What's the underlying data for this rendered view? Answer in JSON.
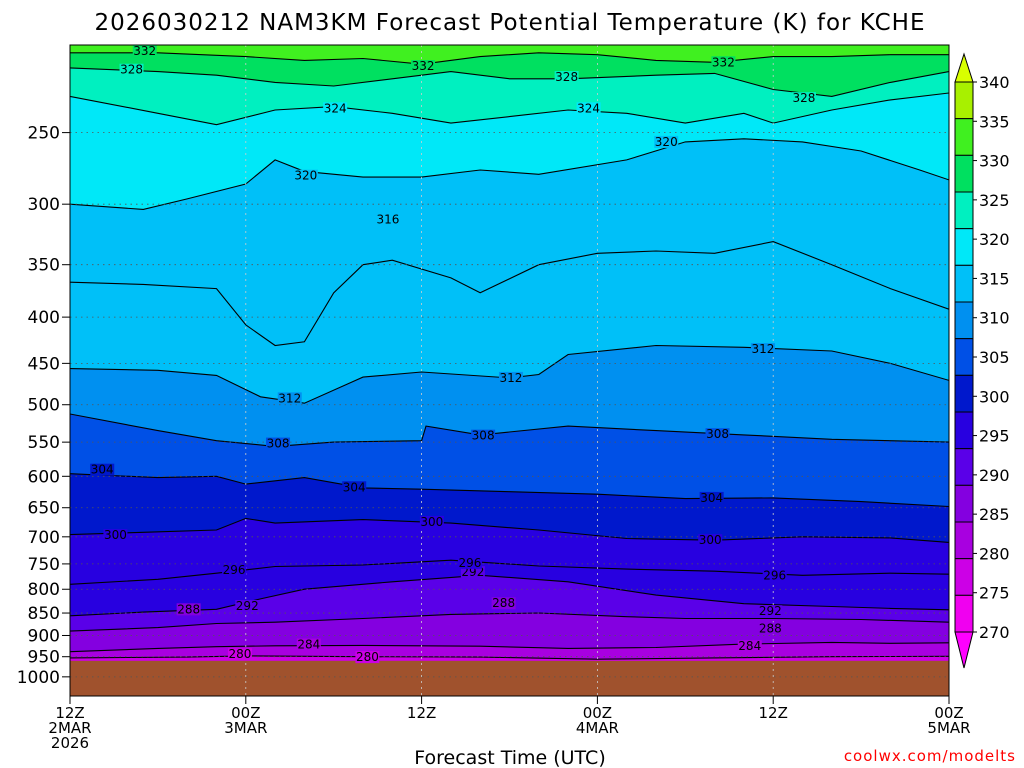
{
  "chart_data": {
    "type": "heatmap",
    "title": "2026030212 NAM3KM Forecast Potential Temperature (K) for KCHE",
    "xlabel": "Forecast Time (UTC)",
    "ylabel": "",
    "y_scale": "log",
    "y_inverted": true,
    "x_range_hours": [
      0,
      60
    ],
    "y_range": [
      1050,
      200
    ],
    "x_ticks": [
      {
        "hour": 0,
        "lines": [
          "12Z",
          "2MAR",
          "2026"
        ]
      },
      {
        "hour": 12,
        "lines": [
          "00Z",
          "3MAR"
        ]
      },
      {
        "hour": 24,
        "lines": [
          "12Z"
        ]
      },
      {
        "hour": 36,
        "lines": [
          "00Z",
          "4MAR"
        ]
      },
      {
        "hour": 48,
        "lines": [
          "12Z"
        ]
      },
      {
        "hour": 60,
        "lines": [
          "00Z",
          "5MAR"
        ]
      }
    ],
    "y_ticks": [
      250,
      300,
      350,
      400,
      450,
      500,
      550,
      600,
      650,
      700,
      750,
      800,
      850,
      900,
      950,
      1000
    ],
    "colorbar": {
      "levels": [
        270,
        275,
        280,
        285,
        290,
        295,
        300,
        305,
        310,
        315,
        320,
        325,
        330,
        335,
        340
      ],
      "colors": [
        "#ff00ff",
        "#f000f0",
        "#cc00e6",
        "#a800e0",
        "#8400e0",
        "#5a00e8",
        "#2800e0",
        "#0018cc",
        "#0050e6",
        "#0090f0",
        "#00c0f8",
        "#00e8f8",
        "#00f0c0",
        "#00e060",
        "#40f020",
        "#a8f000",
        "#d8ff00"
      ]
    },
    "ground_pressure": 960,
    "ground_color": "#a0522d",
    "grid": true,
    "series": [
      {
        "theta": 280,
        "label_points": [
          [
            11.6,
            944
          ],
          [
            20.3,
            951
          ]
        ],
        "pts": [
          [
            0,
            953
          ],
          [
            8,
            951
          ],
          [
            12,
            948
          ],
          [
            20,
            950
          ],
          [
            28,
            951
          ],
          [
            36,
            956
          ],
          [
            44,
            953
          ],
          [
            52,
            950
          ],
          [
            60,
            949
          ]
        ]
      },
      {
        "theta": 284,
        "label_points": [
          [
            16.3,
            921
          ],
          [
            46.4,
            925
          ]
        ],
        "pts": [
          [
            0,
            938
          ],
          [
            6,
            930
          ],
          [
            10,
            926
          ],
          [
            14,
            924
          ],
          [
            20,
            923
          ],
          [
            28,
            925
          ],
          [
            34,
            930
          ],
          [
            40,
            928
          ],
          [
            46,
            920
          ],
          [
            52,
            916
          ],
          [
            56,
            918
          ],
          [
            60,
            917
          ]
        ]
      },
      {
        "theta": 288,
        "label_points": [
          [
            8.1,
            842
          ],
          [
            29.6,
            829
          ],
          [
            47.8,
            884
          ]
        ],
        "pts": [
          [
            0,
            890
          ],
          [
            6,
            882
          ],
          [
            10,
            873
          ],
          [
            14,
            870
          ],
          [
            20,
            862
          ],
          [
            26,
            853
          ],
          [
            32,
            850
          ],
          [
            38,
            858
          ],
          [
            42,
            862
          ],
          [
            48,
            862
          ],
          [
            54,
            864
          ],
          [
            60,
            870
          ]
        ]
      },
      {
        "theta": 292,
        "label_points": [
          [
            12.1,
            835
          ],
          [
            27.5,
            766
          ],
          [
            47.8,
            846
          ]
        ],
        "pts": [
          [
            0,
            856
          ],
          [
            5,
            848
          ],
          [
            10,
            842
          ],
          [
            13,
            820
          ],
          [
            16,
            800
          ],
          [
            22,
            785
          ],
          [
            28,
            772
          ],
          [
            34,
            785
          ],
          [
            40,
            812
          ],
          [
            46,
            830
          ],
          [
            52,
            836
          ],
          [
            56,
            840
          ],
          [
            60,
            843
          ]
        ]
      },
      {
        "theta": 296,
        "label_points": [
          [
            11.2,
            762
          ],
          [
            27.3,
            748
          ],
          [
            48.1,
            772
          ]
        ],
        "pts": [
          [
            0,
            790
          ],
          [
            6,
            780
          ],
          [
            10,
            768
          ],
          [
            14,
            755
          ],
          [
            20,
            752
          ],
          [
            26,
            743
          ],
          [
            32,
            754
          ],
          [
            38,
            760
          ],
          [
            44,
            764
          ],
          [
            50,
            772
          ],
          [
            56,
            768
          ],
          [
            60,
            770
          ]
        ]
      },
      {
        "theta": 300,
        "label_points": [
          [
            3.1,
            697
          ],
          [
            24.7,
            674
          ],
          [
            43.7,
            706
          ]
        ],
        "pts": [
          [
            0,
            696
          ],
          [
            5,
            692
          ],
          [
            10,
            688
          ],
          [
            12,
            668
          ],
          [
            14,
            676
          ],
          [
            20,
            670
          ],
          [
            26,
            676
          ],
          [
            32,
            688
          ],
          [
            38,
            703
          ],
          [
            44,
            706
          ],
          [
            50,
            700
          ],
          [
            56,
            702
          ],
          [
            60,
            710
          ]
        ]
      },
      {
        "theta": 304,
        "label_points": [
          [
            2.2,
            590
          ],
          [
            19.4,
            617
          ],
          [
            43.8,
            634
          ]
        ],
        "pts": [
          [
            0,
            596
          ],
          [
            6,
            602
          ],
          [
            10,
            600
          ],
          [
            12,
            612
          ],
          [
            16,
            602
          ],
          [
            20,
            618
          ],
          [
            24,
            620
          ],
          [
            30,
            624
          ],
          [
            36,
            628
          ],
          [
            42,
            635
          ],
          [
            48,
            634
          ],
          [
            54,
            640
          ],
          [
            60,
            648
          ]
        ]
      },
      {
        "theta": 308,
        "label_points": [
          [
            14.2,
            552
          ],
          [
            28.2,
            541
          ],
          [
            44.2,
            539
          ]
        ],
        "pts": [
          [
            0,
            512
          ],
          [
            6,
            534
          ],
          [
            10,
            548
          ],
          [
            14,
            556
          ],
          [
            18,
            550
          ],
          [
            24,
            548
          ],
          [
            24.3,
            528
          ],
          [
            28,
            540
          ],
          [
            34,
            528
          ],
          [
            40,
            534
          ],
          [
            46,
            540
          ],
          [
            52,
            546
          ],
          [
            60,
            550
          ]
        ]
      },
      {
        "theta": 312,
        "label_points": [
          [
            15.0,
            492
          ],
          [
            30.1,
            467
          ],
          [
            47.3,
            434
          ]
        ],
        "pts": [
          [
            0,
            456
          ],
          [
            6,
            458
          ],
          [
            10,
            464
          ],
          [
            13,
            490
          ],
          [
            16,
            498
          ],
          [
            20,
            466
          ],
          [
            24,
            460
          ],
          [
            30,
            467
          ],
          [
            32,
            463
          ],
          [
            34,
            440
          ],
          [
            40,
            430
          ],
          [
            46,
            432
          ],
          [
            52,
            436
          ],
          [
            56,
            450
          ],
          [
            60,
            470
          ]
        ]
      },
      {
        "theta": 316,
        "label_points": [
          [
            21.7,
            312
          ]
        ],
        "pts": [
          [
            0,
            366
          ],
          [
            5,
            368
          ],
          [
            10,
            372
          ],
          [
            12,
            408
          ],
          [
            14,
            430
          ],
          [
            16,
            426
          ],
          [
            18,
            376
          ],
          [
            20,
            350
          ],
          [
            22,
            346
          ],
          [
            26,
            362
          ],
          [
            28,
            376
          ],
          [
            32,
            350
          ],
          [
            36,
            340
          ],
          [
            40,
            338
          ],
          [
            44,
            340
          ],
          [
            48,
            330
          ],
          [
            52,
            350
          ],
          [
            56,
            372
          ],
          [
            60,
            392
          ]
        ]
      },
      {
        "theta": 320,
        "label_points": [
          [
            16.1,
            279
          ],
          [
            40.7,
            256
          ]
        ],
        "pts": [
          [
            0,
            300
          ],
          [
            5,
            304
          ],
          [
            8,
            296
          ],
          [
            12,
            285
          ],
          [
            14,
            268
          ],
          [
            16,
            276
          ],
          [
            20,
            280
          ],
          [
            24,
            280
          ],
          [
            28,
            275
          ],
          [
            32,
            278
          ],
          [
            38,
            268
          ],
          [
            42,
            256
          ],
          [
            46,
            254
          ],
          [
            50,
            256
          ],
          [
            54,
            262
          ],
          [
            58,
            275
          ],
          [
            60,
            282
          ]
        ]
      },
      {
        "theta": 324,
        "label_points": [
          [
            18.1,
            235
          ],
          [
            35.4,
            235
          ]
        ],
        "pts": [
          [
            0,
            228
          ],
          [
            6,
            238
          ],
          [
            10,
            245
          ],
          [
            14,
            236
          ],
          [
            18,
            234
          ],
          [
            22,
            238
          ],
          [
            26,
            244
          ],
          [
            30,
            240
          ],
          [
            34,
            236
          ],
          [
            38,
            238
          ],
          [
            42,
            244
          ],
          [
            46,
            238
          ],
          [
            48,
            244
          ],
          [
            52,
            236
          ],
          [
            56,
            230
          ],
          [
            60,
            226
          ]
        ]
      },
      {
        "theta": 328,
        "label_points": [
          [
            4.2,
            213
          ],
          [
            33.9,
            217
          ],
          [
            50.1,
            229
          ]
        ],
        "pts": [
          [
            0,
            212
          ],
          [
            6,
            214
          ],
          [
            10,
            216
          ],
          [
            14,
            220
          ],
          [
            18,
            222
          ],
          [
            22,
            218
          ],
          [
            26,
            214
          ],
          [
            30,
            218
          ],
          [
            34,
            218
          ],
          [
            40,
            216
          ],
          [
            44,
            215
          ],
          [
            48,
            224
          ],
          [
            52,
            228
          ],
          [
            56,
            220
          ],
          [
            60,
            214
          ]
        ]
      },
      {
        "theta": 332,
        "label_points": [
          [
            5.1,
            203
          ],
          [
            24.1,
            211
          ],
          [
            44.6,
            209
          ]
        ],
        "pts": [
          [
            0,
            204
          ],
          [
            6,
            204
          ],
          [
            12,
            206
          ],
          [
            16,
            208
          ],
          [
            20,
            207
          ],
          [
            24,
            210
          ],
          [
            28,
            206
          ],
          [
            32,
            204
          ],
          [
            36,
            205
          ],
          [
            40,
            208
          ],
          [
            44,
            209
          ],
          [
            48,
            206
          ],
          [
            52,
            206
          ],
          [
            56,
            205
          ],
          [
            60,
            205
          ]
        ]
      }
    ]
  },
  "footer": {
    "credit": "coolwx.com/modelts",
    "credit_color": "#ff0000"
  }
}
